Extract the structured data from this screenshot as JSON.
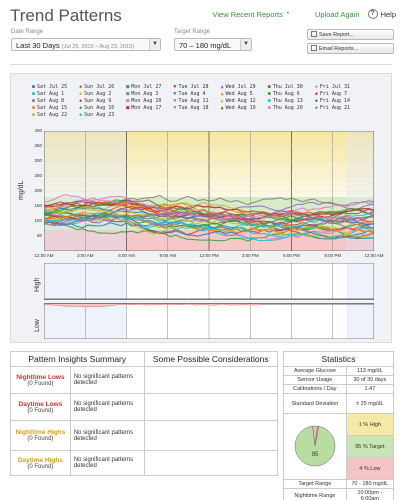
{
  "header": {
    "title": "Trend Patterns",
    "nav": {
      "recent_reports": "View Recent Reports",
      "upload": "Upload Again",
      "help": "Help",
      "help_icon": "?"
    },
    "date_range": {
      "label": "Date Range",
      "value": "Last 30 Days",
      "detail": "(Jul 25, 2015 – Aug 23, 2015)"
    },
    "target_range": {
      "label": "Target Range",
      "value": "70 – 180 mg/dL"
    },
    "save_report": "Save Report...",
    "email_reports": "Email Reports..."
  },
  "legend": [
    {
      "label": "Sat Jul 25",
      "marker": "●",
      "color": "#1f77b4"
    },
    {
      "label": "Sun Jul 26",
      "marker": "◆",
      "color": "#d95f02"
    },
    {
      "label": "Mon Jul 27",
      "marker": "■",
      "color": "#2ca02c"
    },
    {
      "label": "Tue Jul 28",
      "marker": "▼",
      "color": "#d62728"
    },
    {
      "label": "Wed Jul 29",
      "marker": "▲",
      "color": "#9467bd"
    },
    {
      "label": "Thu Jul 30",
      "marker": "●",
      "color": "#8c564b"
    },
    {
      "label": "Fri Jul 31",
      "marker": "◆",
      "color": "#e377c2"
    },
    {
      "label": "Sat Aug 1",
      "marker": "●",
      "color": "#17becf"
    },
    {
      "label": "Sun Aug 2",
      "marker": "◆",
      "color": "#bcbd22"
    },
    {
      "label": "Mon Aug 3",
      "marker": "■",
      "color": "#7f7f7f"
    },
    {
      "label": "Tue Aug 4",
      "marker": "▼",
      "color": "#1f77b4"
    },
    {
      "label": "Wed Aug 5",
      "marker": "▲",
      "color": "#ff7f0e"
    },
    {
      "label": "Thu Aug 6",
      "marker": "●",
      "color": "#2ca02c"
    },
    {
      "label": "Fri Aug 7",
      "marker": "◆",
      "color": "#d62728"
    },
    {
      "label": "Sat Aug 8",
      "marker": "●",
      "color": "#9467bd"
    },
    {
      "label": "Sun Aug 9",
      "marker": "◆",
      "color": "#8c564b"
    },
    {
      "label": "Mon Aug 10",
      "marker": "■",
      "color": "#e377c2"
    },
    {
      "label": "Tue Aug 11",
      "marker": "▼",
      "color": "#7f7f7f"
    },
    {
      "label": "Wed Aug 12",
      "marker": "▲",
      "color": "#bcbd22"
    },
    {
      "label": "Thu Aug 13",
      "marker": "●",
      "color": "#17becf"
    },
    {
      "label": "Fri Aug 14",
      "marker": "◆",
      "color": "#1f77b4"
    },
    {
      "label": "Sat Aug 15",
      "marker": "●",
      "color": "#ff7f0e"
    },
    {
      "label": "Sun Aug 16",
      "marker": "◆",
      "color": "#2ca02c"
    },
    {
      "label": "Mon Aug 17",
      "marker": "■",
      "color": "#d62728"
    },
    {
      "label": "Tue Aug 18",
      "marker": "▼",
      "color": "#9467bd"
    },
    {
      "label": "Wed Aug 19",
      "marker": "▲",
      "color": "#8c564b"
    },
    {
      "label": "Thu Aug 20",
      "marker": "●",
      "color": "#e377c2"
    },
    {
      "label": "Fri Aug 21",
      "marker": "◆",
      "color": "#7f7f7f"
    },
    {
      "label": "Sat Aug 22",
      "marker": "●",
      "color": "#bcbd22"
    },
    {
      "label": "Sun Aug 23",
      "marker": "◆",
      "color": "#17becf"
    }
  ],
  "chart_data": {
    "type": "line",
    "ylabel": "mg/dL",
    "ylim": [
      0,
      400
    ],
    "yticks": [
      "400",
      "350",
      "300",
      "250",
      "200",
      "150",
      "100",
      "50"
    ],
    "xticks": [
      "12:00 AM",
      "3:00 AM",
      "6:00 AM",
      "9:00 AM",
      "12:00 PM",
      "3:00 PM",
      "6:00 PM",
      "9:00 PM",
      "12:00 AM"
    ],
    "target_low": 70,
    "target_high": 180,
    "band_colors": {
      "high": "#f5e7a0",
      "target": "#d7ebc6",
      "low": "#f5c8c8",
      "night": "#dde6f5"
    },
    "series_count": 30,
    "mean_series": [
      {
        "x": 0,
        "y": 125
      },
      {
        "x": 3,
        "y": 130
      },
      {
        "x": 6,
        "y": 135
      },
      {
        "x": 9,
        "y": 118
      },
      {
        "x": 12,
        "y": 110
      },
      {
        "x": 15,
        "y": 108
      },
      {
        "x": 18,
        "y": 112
      },
      {
        "x": 21,
        "y": 115
      },
      {
        "x": 24,
        "y": 118
      }
    ],
    "high_label": "High",
    "low_label": "Low"
  },
  "insights": {
    "title": "Pattern Insights Summary",
    "considerations_title": "Some Possible Considerations",
    "rows": [
      {
        "name": "Nighttime Lows",
        "found": "(0 Found)",
        "desc": "No significant patterns detected"
      },
      {
        "name": "Daytime Lows",
        "found": "(0 Found)",
        "desc": "No significant patterns detected"
      },
      {
        "name": "Nighttime Highs",
        "found": "(0 Found)",
        "desc": "No significant patterns detected"
      },
      {
        "name": "Daytime Highs",
        "found": "(0 Found)",
        "desc": "No significant patterns detected"
      }
    ]
  },
  "statistics": {
    "title": "Statistics",
    "rows": [
      {
        "k": "Average Glucose",
        "v": "113 mg/dL"
      },
      {
        "k": "Sensor Usage",
        "v": "30 of 30 days"
      },
      {
        "k": "Calibrations / Day",
        "v": "1.47"
      },
      {
        "k": "Standard Deviation",
        "v": "± 25 mg/dL"
      }
    ],
    "pie": {
      "high_pct": 1,
      "target_pct": 95,
      "low_pct": 4,
      "center_label": "95"
    },
    "high_label": "1 % High",
    "target_label": "95 % Target",
    "low_label": "4 % Low",
    "target_range_k": "Target Range",
    "target_range_v": "70 - 180 mg/dL",
    "night_range_k": "Nighttime Range",
    "night_range_v": "10:00pm - 6:00am"
  }
}
